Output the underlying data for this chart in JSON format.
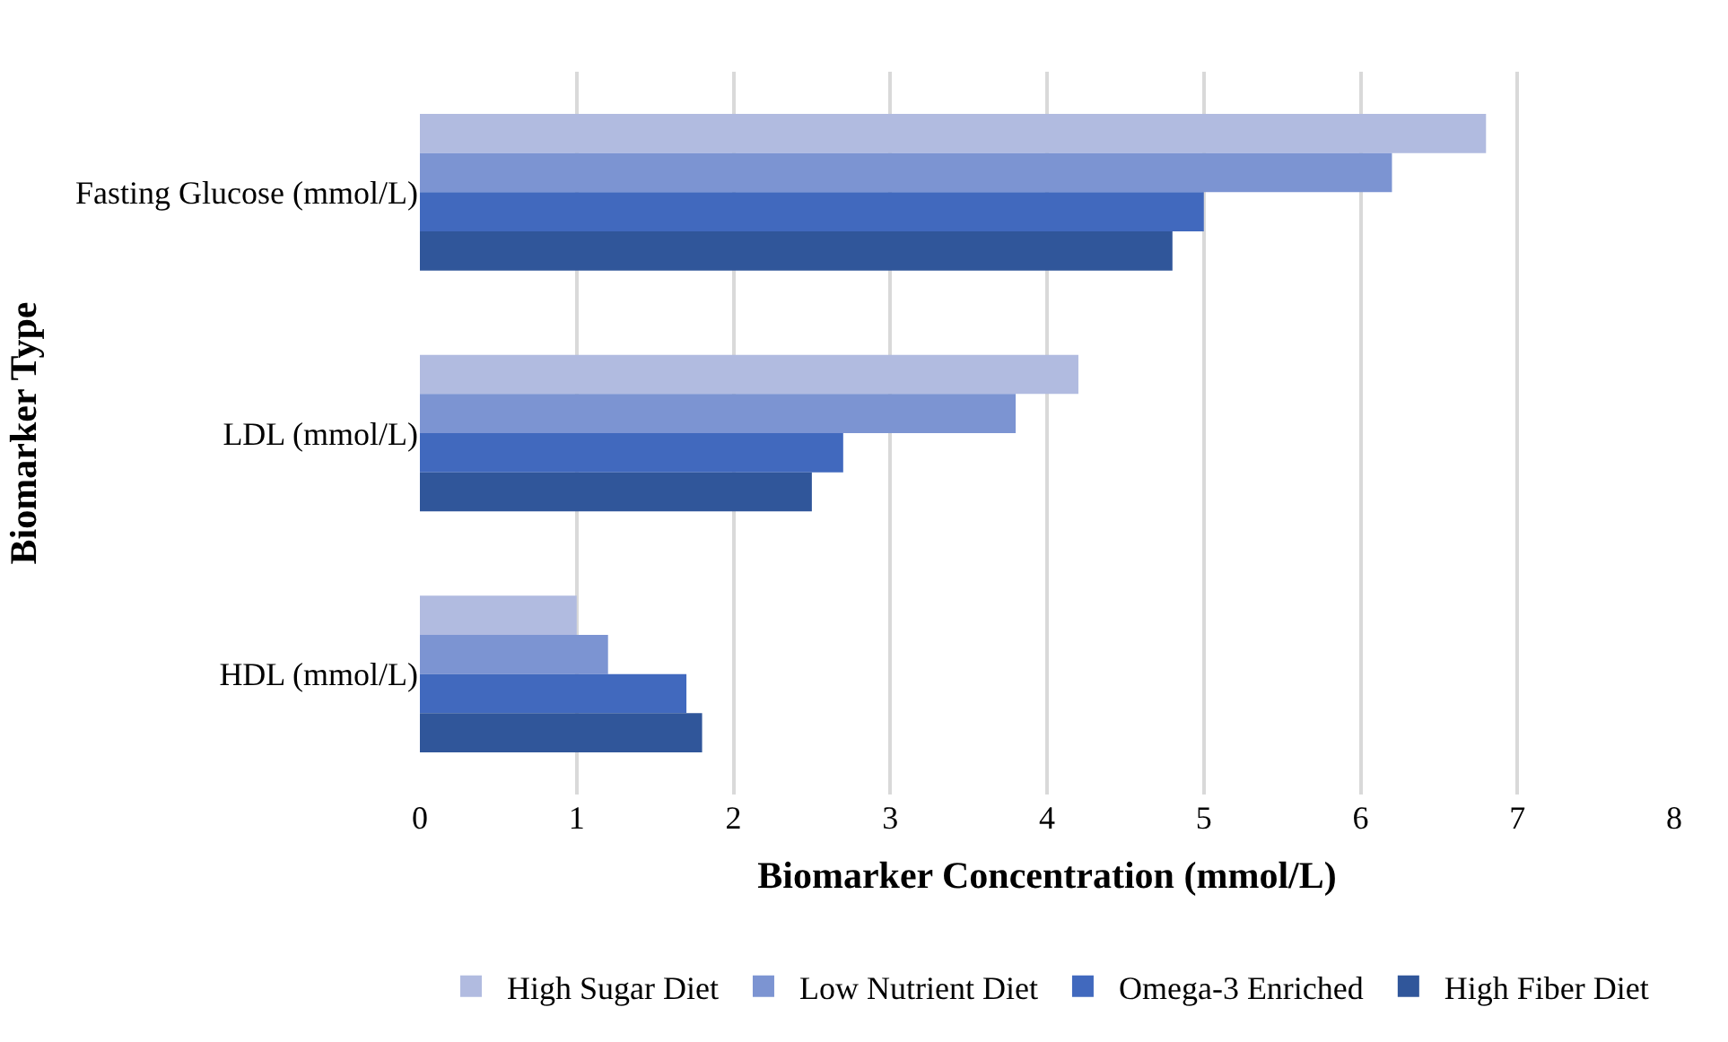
{
  "chart_data": {
    "type": "bar",
    "orientation": "horizontal",
    "xlabel": "Biomarker Concentration (mmol/L)",
    "ylabel": "Biomarker Type",
    "categories": [
      "Fasting Glucose (mmol/L)",
      "LDL (mmol/L)",
      "HDL (mmol/L)"
    ],
    "series": [
      {
        "name": "High Sugar Diet",
        "color": "#b1bbe0",
        "values": [
          6.8,
          4.2,
          1.0
        ]
      },
      {
        "name": "Low Nutrient Diet",
        "color": "#7c94d2",
        "values": [
          6.2,
          3.8,
          1.2
        ]
      },
      {
        "name": "Omega-3 Enriched",
        "color": "#4169be",
        "values": [
          5.0,
          2.7,
          1.7
        ]
      },
      {
        "name": "High Fiber Diet",
        "color": "#30569a",
        "values": [
          4.8,
          2.5,
          1.8
        ]
      }
    ],
    "xlim": [
      0,
      8
    ],
    "xticks": [
      0,
      1,
      2,
      3,
      4,
      5,
      6,
      7,
      8
    ],
    "grid": "x",
    "legend": "bottom"
  }
}
